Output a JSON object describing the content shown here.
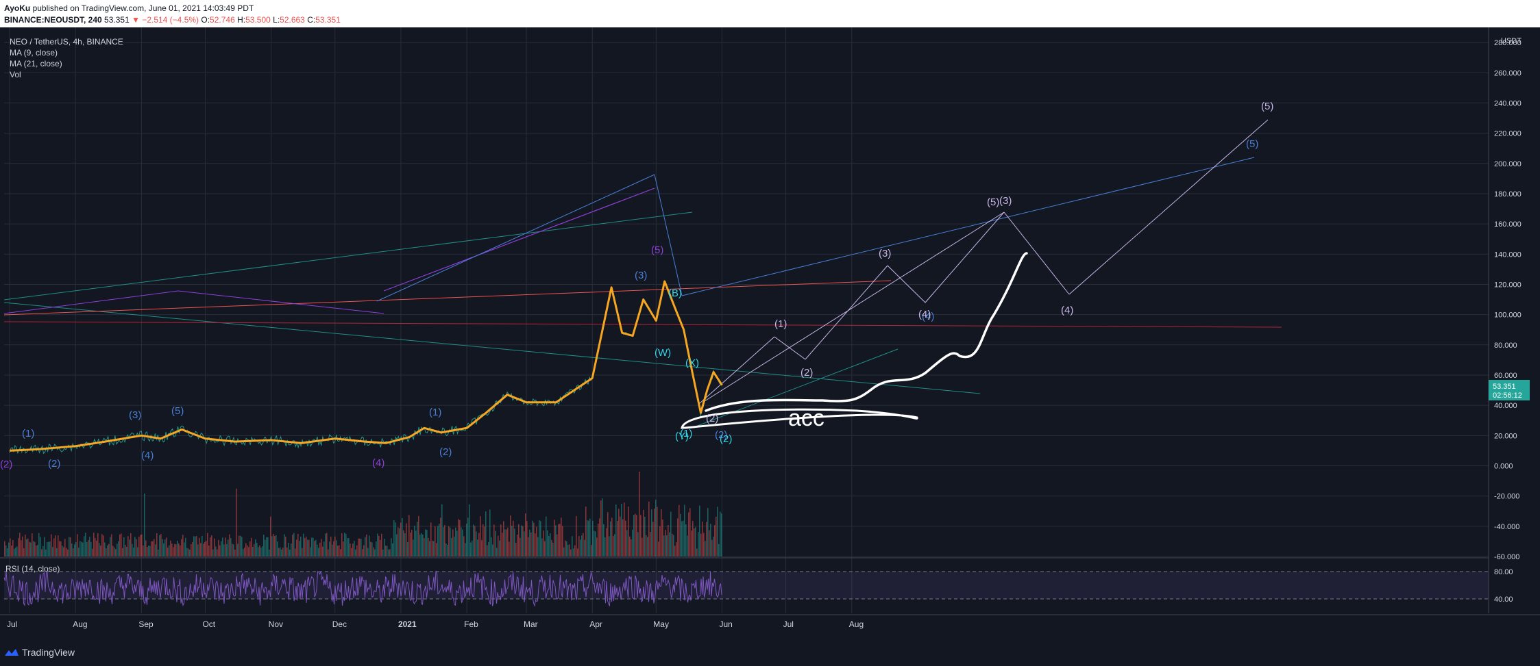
{
  "header": {
    "author": "AyoKu",
    "published": "published on TradingView.com, June 01, 2021 14:03:49 PDT",
    "symbol": "BINANCE:NEOUSDT, 240",
    "last": "53.351",
    "change": "▼ −2.514 (−4.5%)",
    "o_label": "O:",
    "o": "52.746",
    "h_label": "H:",
    "h": "53.500",
    "l_label": "L:",
    "l": "52.663",
    "c_label": "C:",
    "c": "53.351"
  },
  "legend": {
    "title": "NEO / TetherUS, 4h, BINANCE",
    "ma9": "MA (9, close)",
    "ma21": "MA (21, close)",
    "vol": "Vol"
  },
  "rsi": {
    "title": "RSI (14, close)",
    "upper": "80.00",
    "lower": "40.00"
  },
  "axis": {
    "currency": "USDT",
    "price_tag": "53.351",
    "countdown": "02:56:12"
  },
  "branding": {
    "logo_text": "TradingView"
  },
  "colors": {
    "bg": "#131722",
    "up": "#26a69a",
    "down": "#ef5350",
    "price": "#f7a621",
    "ma": "#e38c00",
    "wave_blue": "#4a7fd6",
    "wave_purple": "#8f3fd8",
    "wave_cyan": "#33d6e6",
    "wave_lav": "#c8b8e8",
    "rsi": "#7e57c2",
    "annot": "#ffffff"
  },
  "chart_data": {
    "type": "line",
    "symbol": "NEOUSDT",
    "timeframe": "4h",
    "x_ticks": [
      "Jul",
      "Aug",
      "Sep",
      "Oct",
      "Nov",
      "Dec",
      "2021",
      "Feb",
      "Mar",
      "Apr",
      "May",
      "Jun",
      "Jul",
      "Aug"
    ],
    "y_ticks": [
      "280.000",
      "260.000",
      "240.000",
      "220.000",
      "200.000",
      "180.000",
      "160.000",
      "140.000",
      "120.000",
      "100.000",
      "80.000",
      "60.000",
      "40.000",
      "20.000",
      "0.000",
      "-20.000",
      "-40.000",
      "-60.000"
    ],
    "ylim": [
      -60,
      290
    ],
    "series": [
      {
        "x": [
          "2020-07-01",
          "2020-07-15",
          "2020-08-01",
          "2020-08-15",
          "2020-09-01",
          "2020-09-10",
          "2020-09-20",
          "2020-10-01",
          "2020-10-15",
          "2020-11-01",
          "2020-11-15",
          "2020-12-01",
          "2020-12-15",
          "2020-12-25",
          "2021-01-05",
          "2021-01-12",
          "2021-01-20",
          "2021-02-01",
          "2021-02-10",
          "2021-02-20",
          "2021-03-01",
          "2021-03-15",
          "2021-04-01",
          "2021-04-10",
          "2021-04-15",
          "2021-04-20",
          "2021-04-25",
          "2021-05-01",
          "2021-05-05",
          "2021-05-10",
          "2021-05-14",
          "2021-05-18",
          "2021-05-22",
          "2021-05-25",
          "2021-05-28",
          "2021-06-01"
        ],
        "values": [
          10,
          11,
          13,
          16,
          20,
          18,
          24,
          18,
          16,
          17,
          15,
          18,
          16,
          15,
          19,
          25,
          22,
          25,
          35,
          47,
          42,
          42,
          58,
          118,
          88,
          86,
          110,
          96,
          122,
          104,
          90,
          62,
          35,
          50,
          62,
          53.351
        ]
      }
    ],
    "wave_labels": {
      "blue": [
        "(1)",
        "(2)",
        "(3)",
        "(4)",
        "(5)",
        "(1)",
        "(2)",
        "(3)",
        "(4)",
        "(5)",
        "(2)"
      ],
      "purple": [
        "(2)",
        "(4)",
        "(5)"
      ],
      "cyan": [
        "(B)",
        "(W)",
        "(X)",
        "(Y)",
        "(2)",
        "(1)"
      ],
      "lavender": [
        "(1)",
        "(2)",
        "(3)",
        "(4)",
        "(5)",
        "(3)",
        "(4)",
        "(5)",
        "(2)"
      ]
    },
    "annotation": "acc",
    "rsi_levels": [
      80,
      40
    ]
  }
}
